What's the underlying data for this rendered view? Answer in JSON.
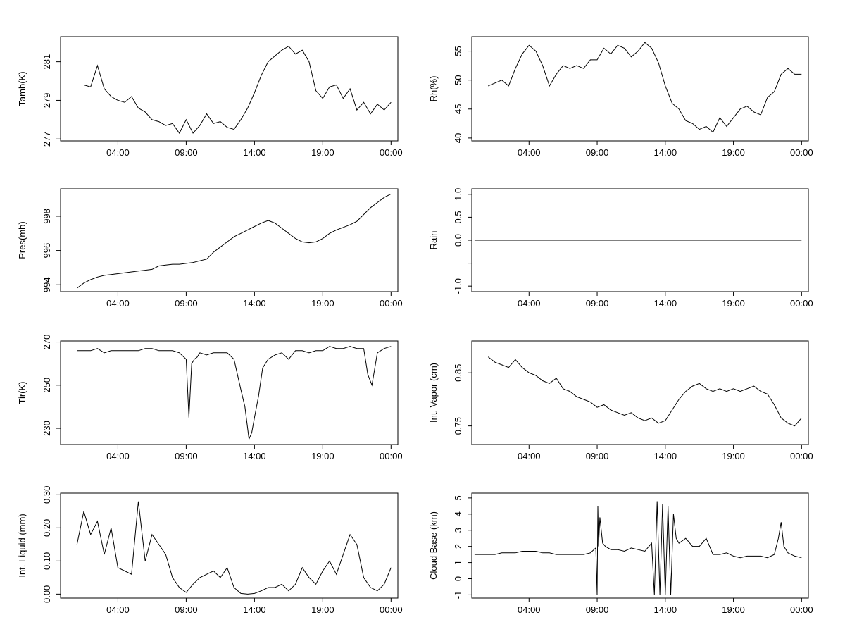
{
  "chart_data": [
    {
      "type": "line",
      "ylabel": "Tamb(K)",
      "yticks": [
        277,
        279,
        281
      ],
      "ylim": [
        276.9,
        282.3
      ],
      "xticks": [
        "04:00",
        "09:00",
        "14:00",
        "19:00",
        "00:00"
      ],
      "xlim_hours": [
        -0.2,
        24.5
      ],
      "series": [
        {
          "x_hours": [
            1.0,
            1.5,
            2.0,
            2.5,
            3.0,
            3.5,
            4.0,
            4.5,
            5.0,
            5.5,
            6.0,
            6.5,
            7.0,
            7.5,
            8.0,
            8.5,
            9.0,
            9.5,
            10.0,
            10.5,
            11.0,
            11.5,
            12.0,
            12.5,
            13.0,
            13.5,
            14.0,
            14.5,
            15.0,
            15.5,
            16.0,
            16.5,
            17.0,
            17.5,
            18.0,
            18.5,
            19.0,
            19.5,
            20.0,
            20.5,
            21.0,
            21.5,
            22.0,
            22.5,
            23.0,
            23.5,
            24.0
          ],
          "values": [
            279.8,
            279.8,
            279.7,
            280.8,
            279.6,
            279.2,
            279.0,
            278.9,
            279.2,
            278.6,
            278.4,
            278.0,
            277.9,
            277.7,
            277.8,
            277.3,
            278.0,
            277.3,
            277.7,
            278.3,
            277.8,
            277.9,
            277.6,
            277.5,
            278.0,
            278.6,
            279.4,
            280.3,
            281.0,
            281.3,
            281.6,
            281.8,
            281.4,
            281.6,
            281.0,
            279.5,
            279.1,
            279.7,
            279.8,
            279.1,
            279.6,
            278.5,
            278.9,
            278.3,
            278.8,
            278.5,
            278.9
          ]
        }
      ]
    },
    {
      "type": "line",
      "ylabel": "Rh(%)",
      "yticks": [
        40,
        45,
        50,
        55
      ],
      "ylim": [
        39.5,
        57.5
      ],
      "xticks": [
        "04:00",
        "09:00",
        "14:00",
        "19:00",
        "00:00"
      ],
      "xlim_hours": [
        -0.2,
        24.5
      ],
      "series": [
        {
          "x_hours": [
            1.0,
            1.5,
            2.0,
            2.5,
            3.0,
            3.5,
            4.0,
            4.5,
            5.0,
            5.5,
            6.0,
            6.5,
            7.0,
            7.5,
            8.0,
            8.5,
            9.0,
            9.5,
            10.0,
            10.5,
            11.0,
            11.5,
            12.0,
            12.5,
            13.0,
            13.5,
            14.0,
            14.5,
            15.0,
            15.5,
            16.0,
            16.5,
            17.0,
            17.5,
            18.0,
            18.5,
            19.0,
            19.5,
            20.0,
            20.5,
            21.0,
            21.5,
            22.0,
            22.5,
            23.0,
            23.5,
            24.0
          ],
          "values": [
            49.0,
            49.5,
            50.0,
            49.0,
            52.0,
            54.5,
            56.0,
            55.0,
            52.5,
            49.0,
            51.0,
            52.5,
            52.0,
            52.5,
            52.0,
            53.5,
            53.5,
            55.5,
            54.5,
            56.0,
            55.5,
            54.0,
            55.0,
            56.5,
            55.5,
            53.0,
            49.0,
            46.0,
            45.0,
            43.0,
            42.5,
            41.5,
            42.0,
            41.0,
            43.5,
            42.0,
            43.5,
            45.0,
            45.5,
            44.5,
            44.0,
            47.0,
            48.0,
            51.0,
            52.0,
            51.0,
            51.0
          ]
        }
      ]
    },
    {
      "type": "line",
      "ylabel": "Pres(mb)",
      "yticks": [
        994,
        996,
        998
      ],
      "ylim": [
        993.6,
        999.6
      ],
      "xticks": [
        "04:00",
        "09:00",
        "14:00",
        "19:00",
        "00:00"
      ],
      "xlim_hours": [
        -0.2,
        24.5
      ],
      "series": [
        {
          "x_hours": [
            1.0,
            1.5,
            2.0,
            2.5,
            3.0,
            3.5,
            4.0,
            4.5,
            5.0,
            5.5,
            6.0,
            6.5,
            7.0,
            7.5,
            8.0,
            8.5,
            9.0,
            9.5,
            10.0,
            10.5,
            11.0,
            11.5,
            12.0,
            12.5,
            13.0,
            13.5,
            14.0,
            14.5,
            15.0,
            15.5,
            16.0,
            16.5,
            17.0,
            17.5,
            18.0,
            18.5,
            19.0,
            19.5,
            20.0,
            20.5,
            21.0,
            21.5,
            22.0,
            22.5,
            23.0,
            23.5,
            24.0
          ],
          "values": [
            993.8,
            994.1,
            994.3,
            994.45,
            994.55,
            994.6,
            994.65,
            994.7,
            994.75,
            994.8,
            994.85,
            994.9,
            995.1,
            995.15,
            995.2,
            995.2,
            995.25,
            995.3,
            995.4,
            995.5,
            995.9,
            996.2,
            996.5,
            996.8,
            997.0,
            997.2,
            997.4,
            997.6,
            997.75,
            997.6,
            997.3,
            997.0,
            996.7,
            996.5,
            996.45,
            996.5,
            996.7,
            997.0,
            997.2,
            997.35,
            997.5,
            997.7,
            998.1,
            998.5,
            998.8,
            999.1,
            999.3
          ]
        }
      ]
    },
    {
      "type": "line",
      "ylabel": "Rain",
      "yticks": [
        -1.0,
        -0.5,
        0.0,
        0.5,
        1.0
      ],
      "yticklabels": [
        "-1.0",
        "",
        "0.0",
        "0.5",
        "1.0"
      ],
      "ylim": [
        -1.12,
        1.12
      ],
      "xticks": [
        "04:00",
        "09:00",
        "14:00",
        "19:00",
        "00:00"
      ],
      "xlim_hours": [
        -0.2,
        24.5
      ],
      "series": [
        {
          "x_hours": [
            0.0,
            24.0
          ],
          "values": [
            0.0,
            0.0
          ]
        }
      ]
    },
    {
      "type": "line",
      "ylabel": "Tir(K)",
      "yticks": [
        230,
        250,
        270
      ],
      "ylim": [
        222.5,
        270.5
      ],
      "xticks": [
        "04:00",
        "09:00",
        "14:00",
        "19:00",
        "00:00"
      ],
      "xlim_hours": [
        -0.2,
        24.5
      ],
      "series": [
        {
          "x_hours": [
            1.0,
            1.5,
            2.0,
            2.5,
            3.0,
            3.5,
            4.0,
            4.5,
            5.0,
            5.5,
            6.0,
            6.5,
            7.0,
            7.5,
            8.0,
            8.5,
            9.0,
            9.2,
            9.4,
            9.6,
            9.8,
            10.0,
            10.5,
            11.0,
            11.5,
            12.0,
            12.5,
            13.0,
            13.3,
            13.6,
            13.8,
            14.0,
            14.3,
            14.6,
            15.0,
            15.5,
            16.0,
            16.5,
            17.0,
            17.5,
            18.0,
            18.5,
            19.0,
            19.5,
            20.0,
            20.5,
            21.0,
            21.5,
            22.0,
            22.3,
            22.6,
            23.0,
            23.5,
            24.0
          ],
          "values": [
            266,
            266,
            266,
            267,
            265,
            266,
            266,
            266,
            266,
            266,
            267,
            267,
            266,
            266,
            266,
            265,
            262,
            235,
            260,
            262,
            263,
            265,
            264,
            265,
            265,
            265,
            262,
            248,
            240,
            225,
            228,
            235,
            245,
            258,
            262,
            264,
            265,
            262,
            266,
            266,
            265,
            266,
            266,
            268,
            267,
            267,
            268,
            267,
            267,
            255,
            250,
            265,
            267,
            268
          ]
        }
      ]
    },
    {
      "type": "line",
      "ylabel": "Int. Vapor (cm)",
      "yticks": [
        0.75,
        0.85
      ],
      "ylim": [
        0.715,
        0.91
      ],
      "xticks": [
        "04:00",
        "09:00",
        "14:00",
        "19:00",
        "00:00"
      ],
      "xlim_hours": [
        -0.2,
        24.5
      ],
      "series": [
        {
          "x_hours": [
            1.0,
            1.5,
            2.0,
            2.5,
            3.0,
            3.5,
            4.0,
            4.5,
            5.0,
            5.5,
            6.0,
            6.5,
            7.0,
            7.5,
            8.0,
            8.5,
            9.0,
            9.5,
            10.0,
            10.5,
            11.0,
            11.5,
            12.0,
            12.5,
            13.0,
            13.5,
            14.0,
            14.5,
            15.0,
            15.5,
            16.0,
            16.5,
            17.0,
            17.5,
            18.0,
            18.5,
            19.0,
            19.5,
            20.0,
            20.5,
            21.0,
            21.5,
            22.0,
            22.5,
            23.0,
            23.5,
            24.0
          ],
          "values": [
            0.88,
            0.87,
            0.865,
            0.86,
            0.875,
            0.86,
            0.85,
            0.845,
            0.835,
            0.83,
            0.84,
            0.82,
            0.815,
            0.805,
            0.8,
            0.795,
            0.785,
            0.79,
            0.78,
            0.775,
            0.77,
            0.775,
            0.765,
            0.76,
            0.765,
            0.755,
            0.76,
            0.78,
            0.8,
            0.815,
            0.825,
            0.83,
            0.82,
            0.815,
            0.82,
            0.815,
            0.82,
            0.815,
            0.82,
            0.825,
            0.815,
            0.81,
            0.79,
            0.765,
            0.755,
            0.75,
            0.765
          ]
        }
      ]
    },
    {
      "type": "line",
      "ylabel": "Int. Liquid (mm)",
      "yticks": [
        0.0,
        0.1,
        0.2,
        0.3
      ],
      "yticklabels": [
        "0.00",
        "0.10",
        "0.20",
        "0.30"
      ],
      "ylim": [
        -0.012,
        0.305
      ],
      "xticks": [
        "04:00",
        "09:00",
        "14:00",
        "19:00",
        "00:00"
      ],
      "xlim_hours": [
        -0.2,
        24.5
      ],
      "series": [
        {
          "x_hours": [
            1.0,
            1.5,
            2.0,
            2.5,
            3.0,
            3.5,
            4.0,
            4.5,
            5.0,
            5.5,
            6.0,
            6.5,
            7.0,
            7.5,
            8.0,
            8.5,
            9.0,
            9.5,
            10.0,
            10.5,
            11.0,
            11.5,
            12.0,
            12.5,
            13.0,
            13.5,
            14.0,
            14.5,
            15.0,
            15.5,
            16.0,
            16.5,
            17.0,
            17.5,
            18.0,
            18.5,
            19.0,
            19.5,
            20.0,
            20.5,
            21.0,
            21.5,
            22.0,
            22.5,
            23.0,
            23.5,
            24.0
          ],
          "values": [
            0.15,
            0.25,
            0.18,
            0.22,
            0.12,
            0.2,
            0.08,
            0.07,
            0.06,
            0.28,
            0.1,
            0.18,
            0.15,
            0.12,
            0.05,
            0.02,
            0.005,
            0.03,
            0.05,
            0.06,
            0.07,
            0.05,
            0.08,
            0.02,
            0.002,
            0.0,
            0.002,
            0.01,
            0.02,
            0.02,
            0.03,
            0.01,
            0.03,
            0.08,
            0.05,
            0.03,
            0.07,
            0.1,
            0.06,
            0.12,
            0.18,
            0.15,
            0.05,
            0.02,
            0.01,
            0.03,
            0.08
          ]
        }
      ]
    },
    {
      "type": "line",
      "ylabel": "Cloud Base (km)",
      "yticks": [
        -1,
        0,
        1,
        2,
        3,
        4,
        5
      ],
      "ylim": [
        -1.2,
        5.3
      ],
      "xticks": [
        "04:00",
        "09:00",
        "14:00",
        "19:00",
        "00:00"
      ],
      "xlim_hours": [
        -0.2,
        24.5
      ],
      "series": [
        {
          "x_hours": [
            0.0,
            0.5,
            1.0,
            1.5,
            2.0,
            2.5,
            3.0,
            3.5,
            4.0,
            4.5,
            5.0,
            5.5,
            6.0,
            6.5,
            7.0,
            7.5,
            8.0,
            8.5,
            8.9,
            9.0,
            9.05,
            9.1,
            9.2,
            9.4,
            9.6,
            10.0,
            10.5,
            11.0,
            11.5,
            12.0,
            12.5,
            13.0,
            13.2,
            13.4,
            13.6,
            13.8,
            14.0,
            14.2,
            14.4,
            14.6,
            14.8,
            15.0,
            15.5,
            16.0,
            16.5,
            17.0,
            17.5,
            18.0,
            18.5,
            19.0,
            19.5,
            20.0,
            20.5,
            21.0,
            21.5,
            22.0,
            22.3,
            22.5,
            22.7,
            23.0,
            23.5,
            24.0
          ],
          "values": [
            1.5,
            1.5,
            1.5,
            1.5,
            1.6,
            1.6,
            1.6,
            1.7,
            1.7,
            1.7,
            1.6,
            1.6,
            1.5,
            1.5,
            1.5,
            1.5,
            1.5,
            1.6,
            1.9,
            -1.0,
            4.5,
            2.0,
            3.8,
            2.2,
            2.0,
            1.8,
            1.8,
            1.7,
            1.9,
            1.8,
            1.7,
            2.2,
            -1.0,
            4.8,
            -1.0,
            4.6,
            -1.0,
            4.5,
            -1.0,
            4.0,
            2.5,
            2.2,
            2.5,
            2.0,
            2.0,
            2.5,
            1.5,
            1.5,
            1.6,
            1.4,
            1.3,
            1.4,
            1.4,
            1.4,
            1.3,
            1.5,
            2.5,
            3.5,
            2.0,
            1.6,
            1.4,
            1.3
          ]
        }
      ]
    }
  ]
}
